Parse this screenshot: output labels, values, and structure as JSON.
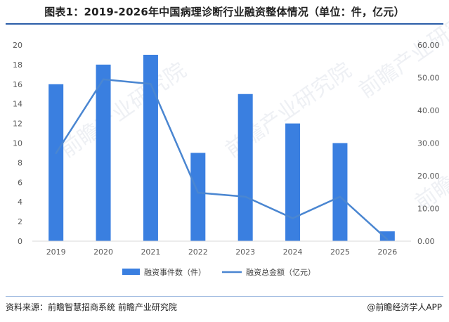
{
  "header": {
    "title": "图表1：2019-2026年中国病理诊断行业融资整体情况（单位：件，亿元）"
  },
  "footer": {
    "source": "资料来源：前瞻智慧招商系统  前瞻产业研究院",
    "credit": "@前瞻经济学人APP"
  },
  "watermark": "前瞻产业研究院",
  "chart_data": {
    "type": "bar",
    "categories": [
      "2019",
      "2020",
      "2021",
      "2022",
      "2023",
      "2024",
      "2025",
      "2026"
    ],
    "series": [
      {
        "name": "融资事件数（件）",
        "type": "bar",
        "axis": "left",
        "color": "#3a7fe0",
        "values": [
          16,
          18,
          19,
          9,
          15,
          12,
          10,
          1
        ]
      },
      {
        "name": "融资总金额（亿元）",
        "type": "line",
        "axis": "right",
        "color": "#4a86d1",
        "values": [
          26.9,
          49.5,
          48.1,
          14.8,
          13.6,
          7.0,
          13.6,
          0.5
        ]
      }
    ],
    "y_left": {
      "min": 0,
      "max": 20,
      "step": 2,
      "ticks": [
        "0",
        "2",
        "4",
        "6",
        "8",
        "10",
        "12",
        "14",
        "16",
        "18",
        "20"
      ]
    },
    "y_right": {
      "min": 0,
      "max": 60,
      "step": 10,
      "ticks": [
        "0.00",
        "10.00",
        "20.00",
        "30.00",
        "40.00",
        "50.00",
        "60.00"
      ]
    },
    "grid": false,
    "legend_position": "bottom"
  }
}
